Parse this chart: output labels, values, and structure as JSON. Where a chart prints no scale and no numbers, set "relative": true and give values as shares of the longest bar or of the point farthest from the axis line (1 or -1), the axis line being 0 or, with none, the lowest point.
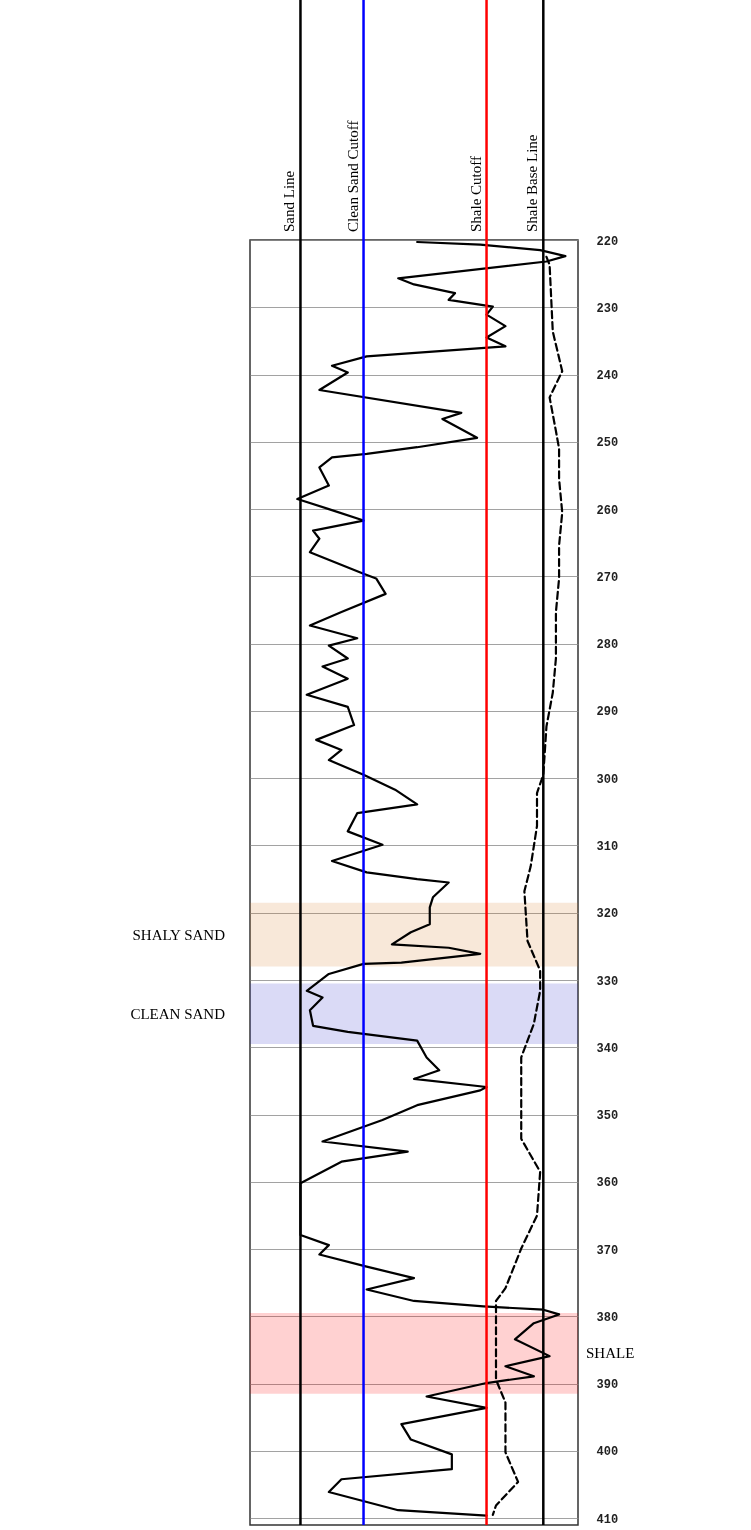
{
  "chart_data": {
    "type": "line",
    "orientation": "horizontal",
    "relative": true,
    "grid": "y",
    "tick_labels": "y",
    "ylim": [
      411,
      220
    ],
    "yticks": [
      220,
      230,
      240,
      250,
      260,
      270,
      280,
      290,
      300,
      310,
      320,
      330,
      340,
      350,
      360,
      370,
      380,
      390,
      400,
      410
    ],
    "series": [
      {
        "color": "#000000",
        "line_style": "solid",
        "x": [
          220.3,
          220.7,
          221.5,
          222.4,
          223.2,
          225.7,
          226.6,
          227.9,
          228.9,
          229.9,
          231.1,
          232.8,
          234.5,
          235.8,
          237.3,
          238.7,
          239.7,
          242.3,
          245.7,
          246.6,
          249.4,
          250.8,
          251.8,
          252.3,
          253.8,
          256.5,
          258.5,
          260.0,
          261.7,
          263.2,
          264.4,
          266.4,
          269.6,
          270.3,
          272.6,
          275.3,
          277.3,
          279.2,
          280.3,
          282.2,
          283.4,
          285.2,
          287.6,
          289.4,
          292.1,
          294.3,
          295.8,
          297.3,
          299.5,
          301.7,
          303.9,
          305.2,
          307.9,
          309.9,
          312.3,
          314.0,
          315.0,
          315.5,
          317.7,
          319.2,
          321.7,
          322.9,
          324.7,
          325.2,
          326.1,
          327.4,
          327.6,
          329.1,
          331.6,
          332.6,
          334.5,
          336.8,
          337.7,
          339.0,
          341.5,
          343.4,
          344.7,
          345.9,
          346.4,
          348.6,
          350.8,
          354.0,
          355.5,
          357.0,
          360.2,
          362.9,
          367.9,
          369.4,
          370.8,
          372.6,
          374.3,
          376.0,
          377.7,
          378.5,
          379.0,
          379.7,
          381.0,
          383.4,
          385.9,
          387.4,
          388.9,
          389.9,
          391.9,
          393.6,
          396.0,
          398.3,
          400.5,
          402.7,
          404.2,
          406.1,
          408.8,
          409.6
        ],
        "values": [
          0.53,
          0.73,
          0.92,
          1.0,
          0.94,
          0.47,
          0.52,
          0.65,
          0.63,
          0.77,
          0.75,
          0.81,
          0.75,
          0.81,
          0.37,
          0.26,
          0.31,
          0.22,
          0.67,
          0.61,
          0.72,
          0.53,
          0.37,
          0.26,
          0.22,
          0.25,
          0.15,
          0.25,
          0.36,
          0.2,
          0.22,
          0.19,
          0.36,
          0.4,
          0.43,
          0.29,
          0.19,
          0.34,
          0.25,
          0.31,
          0.23,
          0.31,
          0.18,
          0.31,
          0.33,
          0.21,
          0.29,
          0.25,
          0.36,
          0.46,
          0.53,
          0.34,
          0.31,
          0.42,
          0.26,
          0.37,
          0.53,
          0.63,
          0.58,
          0.57,
          0.57,
          0.51,
          0.45,
          0.63,
          0.73,
          0.48,
          0.36,
          0.25,
          0.18,
          0.23,
          0.19,
          0.2,
          0.31,
          0.53,
          0.56,
          0.6,
          0.52,
          0.75,
          0.73,
          0.53,
          0.42,
          0.23,
          0.5,
          0.29,
          0.16,
          0.16,
          0.16,
          0.25,
          0.22,
          0.37,
          0.52,
          0.37,
          0.52,
          0.74,
          0.93,
          0.98,
          0.9,
          0.84,
          0.95,
          0.81,
          0.9,
          0.75,
          0.56,
          0.75,
          0.48,
          0.51,
          0.64,
          0.64,
          0.29,
          0.25,
          0.47,
          0.75
        ]
      },
      {
        "color": "#000000",
        "line_style": "dashed",
        "x": [
          222.5,
          223.7,
          233.6,
          239.5,
          243.4,
          248.4,
          251.0,
          255.5,
          260.5,
          265.4,
          270.3,
          275.3,
          282.2,
          287.3,
          292.3,
          299.5,
          302.2,
          307.1,
          313.1,
          316.8,
          324.2,
          328.6,
          331.6,
          336.5,
          341.5,
          346.5,
          353.6,
          358.5,
          365.0,
          369.9,
          375.8,
          377.7,
          389.4,
          392.8,
          400.2,
          404.6,
          408.1,
          409.5
        ],
        "values": [
          0.94,
          0.95,
          0.96,
          0.99,
          0.95,
          0.97,
          0.98,
          0.98,
          0.99,
          0.98,
          0.98,
          0.97,
          0.97,
          0.96,
          0.94,
          0.93,
          0.91,
          0.91,
          0.89,
          0.87,
          0.88,
          0.92,
          0.92,
          0.9,
          0.86,
          0.86,
          0.86,
          0.92,
          0.91,
          0.86,
          0.81,
          0.78,
          0.78,
          0.81,
          0.81,
          0.85,
          0.78,
          0.77
        ]
      }
    ],
    "ref_lines": [
      {
        "axis": "x",
        "value": 0.16,
        "label": "Sand Line",
        "color": "#000000"
      },
      {
        "axis": "x",
        "value": 0.36,
        "label": "Clean Sand Cutoff",
        "color": "#0000ff"
      },
      {
        "axis": "x",
        "value": 0.75,
        "label": "Shale Cutoff",
        "color": "#ff0000"
      },
      {
        "axis": "x",
        "value": 0.93,
        "label": "Shale Base Line",
        "color": "#000000"
      }
    ],
    "bands": [
      {
        "axis": "y",
        "from": 318.5,
        "to": 328,
        "label": "SHALY SAND",
        "color": "#d9822b"
      },
      {
        "axis": "y",
        "from": 330.5,
        "to": 339.5,
        "label": "CLEAN SAND",
        "color": "#3333cc"
      },
      {
        "axis": "y",
        "from": 379.5,
        "to": 391.5,
        "label": "SHALE",
        "color": "#ff0000"
      }
    ]
  }
}
